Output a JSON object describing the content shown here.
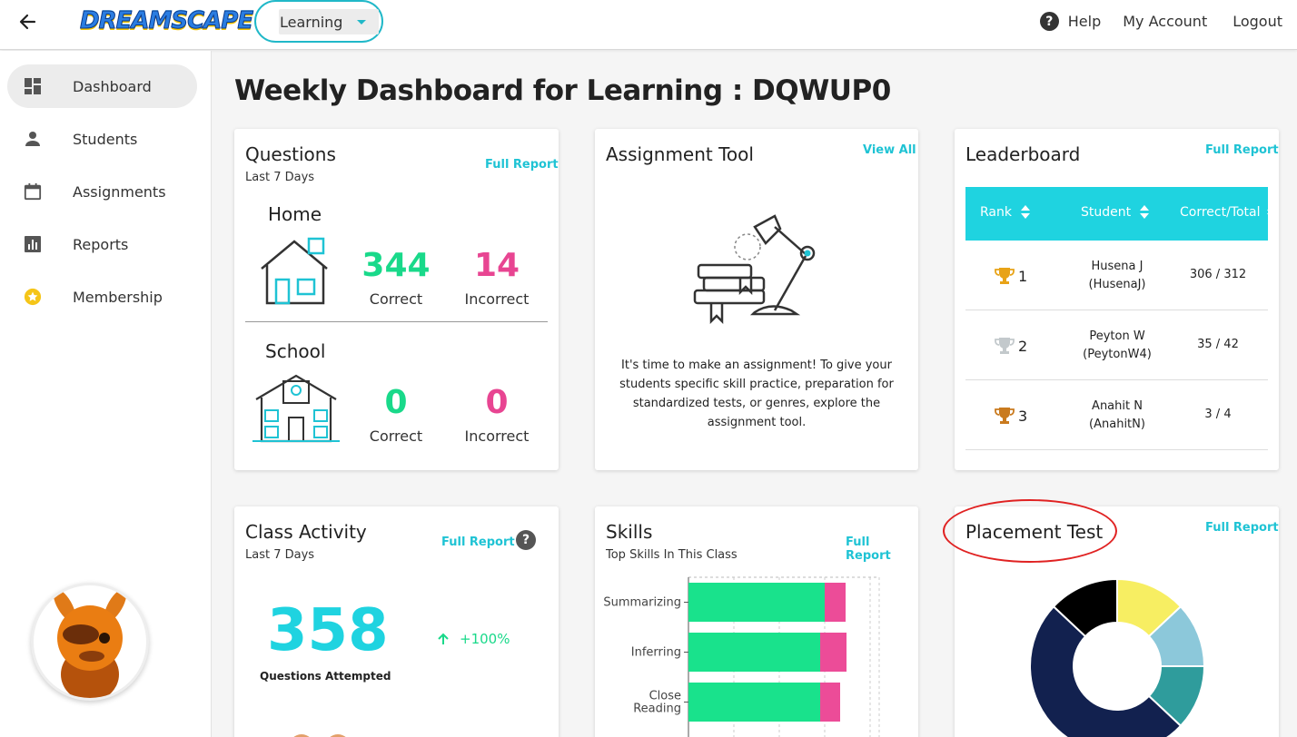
{
  "topbar": {
    "logo_text": "DREAMSCAPE",
    "class_select_value": "Learning",
    "help_label": "Help",
    "account_label": "My Account",
    "logout_label": "Logout"
  },
  "sidebar": {
    "items": [
      {
        "label": "Dashboard",
        "icon": "dashboard-icon",
        "active": true
      },
      {
        "label": "Students",
        "icon": "person-icon",
        "active": false
      },
      {
        "label": "Assignments",
        "icon": "calendar-icon",
        "active": false
      },
      {
        "label": "Reports",
        "icon": "bar-chart-icon",
        "active": false
      },
      {
        "label": "Membership",
        "icon": "star-badge-icon",
        "active": false
      }
    ]
  },
  "page": {
    "title": "Weekly Dashboard for Learning : DQWUP0"
  },
  "questions": {
    "title": "Questions",
    "subtitle": "Last 7 Days",
    "link": "Full Report",
    "home": {
      "label": "Home",
      "correct": "344",
      "incorrect": "14",
      "correct_label": "Correct",
      "incorrect_label": "Incorrect"
    },
    "school": {
      "label": "School",
      "correct": "0",
      "incorrect": "0",
      "correct_label": "Correct",
      "incorrect_label": "Incorrect"
    }
  },
  "assignment_tool": {
    "title": "Assignment Tool",
    "link": "View All",
    "text": "It's time to make an assignment! To give your students specific skill practice, preparation for standardized tests, or genres, explore the assignment tool."
  },
  "leaderboard": {
    "title": "Leaderboard",
    "link": "Full Report",
    "columns": [
      "Rank",
      "Student",
      "Correct/Total"
    ],
    "rows": [
      {
        "rank": "1",
        "name": "Husena J",
        "username": "(HusenaJ)",
        "score": "306 / 312",
        "trophy": "gold"
      },
      {
        "rank": "2",
        "name": "Peyton W",
        "username": "(PeytonW4)",
        "score": "35 / 42",
        "trophy": "silver"
      },
      {
        "rank": "3",
        "name": "Anahit N",
        "username": "(AnahitN)",
        "score": "3 / 4",
        "trophy": "bronze"
      }
    ]
  },
  "class_activity": {
    "title": "Class Activity",
    "subtitle": "Last 7 Days",
    "link": "Full Report",
    "value": "358",
    "caption": "Questions Attempted",
    "change": "+100%"
  },
  "skills": {
    "title": "Skills",
    "subtitle": "Top Skills In This Class",
    "link": "Full Report"
  },
  "placement": {
    "title": "Placement Test",
    "link": "Full Report"
  },
  "chart_data": [
    {
      "type": "bar",
      "orientation": "horizontal",
      "stacked": true,
      "categories": [
        "Summarizing",
        "Inferring",
        "Close Reading"
      ],
      "series": [
        {
          "values": [
            150,
            145,
            145
          ],
          "color": "#19e28c"
        },
        {
          "values": [
            23,
            29,
            22
          ],
          "color": "#ec4c98"
        }
      ],
      "grid": true
    },
    {
      "type": "pie",
      "donut": true,
      "slices": [
        {
          "value": 13,
          "color": "#f7ee62"
        },
        {
          "value": 12,
          "color": "#8cc8da"
        },
        {
          "value": 12,
          "color": "#2f9c9c"
        },
        {
          "value": 50,
          "color": "#12214f"
        },
        {
          "value": 13,
          "color": "#000000"
        }
      ]
    }
  ],
  "colors": {
    "accent": "#1fd3e0",
    "correct": "#19d98a",
    "incorrect": "#e84592",
    "highlight_ring": "#e02222"
  }
}
